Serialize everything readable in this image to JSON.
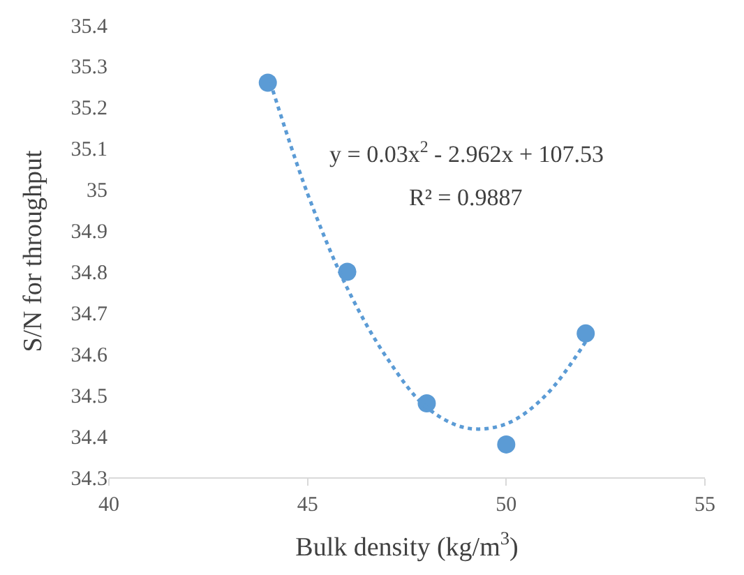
{
  "chart_data": {
    "type": "scatter",
    "xlabel": "Bulk density (kg/m$^{3}$)",
    "ylabel": "S/N for throughput",
    "xlim": [
      40,
      55
    ],
    "xticks": [
      40,
      45,
      50,
      55
    ],
    "ylim": [
      34.3,
      35.4
    ],
    "yticks": [
      {
        "value": 34.3,
        "label": "34.3"
      },
      {
        "value": 34.4,
        "label": "34.4"
      },
      {
        "value": 34.5,
        "label": "34.5"
      },
      {
        "value": 34.6,
        "label": "34.6"
      },
      {
        "value": 34.7,
        "label": "34.7"
      },
      {
        "value": 34.8,
        "label": "34.8"
      },
      {
        "value": 34.9,
        "label": "34.9"
      },
      {
        "value": 35,
        "label": "35"
      },
      {
        "value": 35.1,
        "label": "35.1"
      },
      {
        "value": 35.2,
        "label": "35.2"
      },
      {
        "value": 35.3,
        "label": "35.3"
      },
      {
        "value": 35.4,
        "label": "35.4"
      }
    ],
    "marker": "circle",
    "series": [
      {
        "color": "#5b9bd5",
        "x": [
          44,
          46,
          48,
          50,
          52
        ],
        "values": [
          35.26,
          34.8,
          34.48,
          34.38,
          34.65
        ]
      },
      {
        "type": "line",
        "color": "#5b9bd5",
        "line_style": "dotted",
        "marker": "none",
        "x": [
          44,
          45,
          46,
          47,
          48,
          49,
          50,
          51,
          52
        ],
        "values": [
          35.28,
          34.99,
          34.76,
          34.59,
          34.47,
          34.42,
          34.43,
          34.5,
          34.63
        ]
      }
    ],
    "annotations": [
      "y = 0.03x$^{2}$ - 2.962x + 107.53",
      "R² = 0.9887"
    ]
  }
}
